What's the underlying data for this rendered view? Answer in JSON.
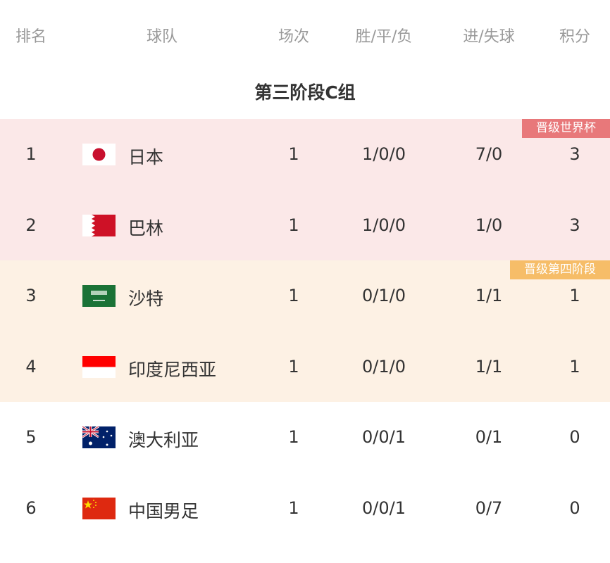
{
  "header": {
    "rank": "排名",
    "team": "球队",
    "matches": "场次",
    "wdl": "胜/平/负",
    "goals": "进/失球",
    "points": "积分"
  },
  "group_title": "第三阶段C组",
  "colors": {
    "qualified_bg": "#fbe8e8",
    "playoff_bg": "#fdf1e4",
    "qualified_badge": "#e8787a",
    "playoff_badge": "#f6bd68"
  },
  "badges": {
    "qualified": "晋级世界杯",
    "playoff": "晋级第四阶段"
  },
  "rows": [
    {
      "rank": "1",
      "team": "日本",
      "flag": "japan-flag",
      "matches": "1",
      "wdl": "1/0/0",
      "goals": "7/0",
      "points": "3",
      "zone": "qualified"
    },
    {
      "rank": "2",
      "team": "巴林",
      "flag": "bahrain-flag",
      "matches": "1",
      "wdl": "1/0/0",
      "goals": "1/0",
      "points": "3",
      "zone": "qualified"
    },
    {
      "rank": "3",
      "team": "沙特",
      "flag": "saudi-arabia-flag",
      "matches": "1",
      "wdl": "0/1/0",
      "goals": "1/1",
      "points": "1",
      "zone": "playoff"
    },
    {
      "rank": "4",
      "team": "印度尼西亚",
      "flag": "indonesia-flag",
      "matches": "1",
      "wdl": "0/1/0",
      "goals": "1/1",
      "points": "1",
      "zone": "playoff"
    },
    {
      "rank": "5",
      "team": "澳大利亚",
      "flag": "australia-flag",
      "matches": "1",
      "wdl": "0/0/1",
      "goals": "0/1",
      "points": "0",
      "zone": "none"
    },
    {
      "rank": "6",
      "team": "中国男足",
      "flag": "china-flag",
      "matches": "1",
      "wdl": "0/0/1",
      "goals": "0/7",
      "points": "0",
      "zone": "none"
    }
  ]
}
